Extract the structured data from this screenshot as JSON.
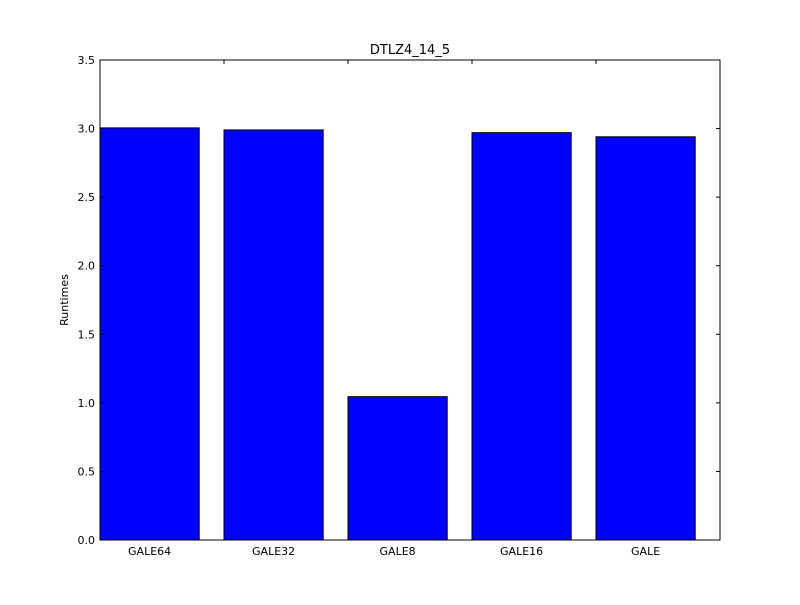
{
  "chart_data": {
    "type": "bar",
    "title": "DTLZ4_14_5",
    "xlabel": "",
    "ylabel": "Runtimes",
    "categories": [
      "GALE64",
      "GALE32",
      "GALE8",
      "GALE16",
      "GALE"
    ],
    "values": [
      3.005,
      2.99,
      1.045,
      2.97,
      2.94
    ],
    "ylim": [
      0,
      3.5
    ],
    "yticks": [
      "0.0",
      "0.5",
      "1.0",
      "1.5",
      "2.0",
      "2.5",
      "3.0",
      "3.5"
    ],
    "bar_color": "#0000ff",
    "edge_color": "#000000",
    "grid": false,
    "legend": false
  }
}
